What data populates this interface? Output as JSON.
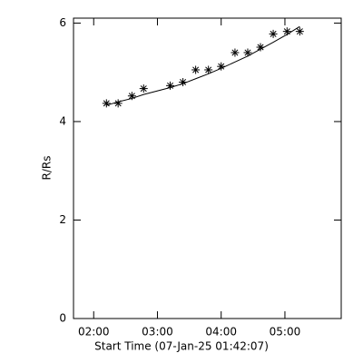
{
  "chart_data": {
    "type": "scatter",
    "xlabel": "Start Time (07-Jan-25 01:42:07)",
    "ylabel": "R/Rs",
    "x": [
      132,
      143,
      156,
      167,
      192,
      204,
      216,
      228,
      240,
      253,
      265,
      277,
      289,
      302,
      314
    ],
    "series": [
      {
        "color": "#000000",
        "marker": "asterisk",
        "values": [
          4.37,
          4.37,
          4.52,
          4.67,
          4.73,
          4.8,
          5.05,
          5.05,
          5.12,
          5.4,
          5.4,
          5.51,
          5.78,
          5.83,
          5.83
        ]
      },
      {
        "color": "#000000",
        "marker": "none",
        "values": [
          4.33,
          4.4,
          4.47,
          4.55,
          4.69,
          4.77,
          4.87,
          4.97,
          5.08,
          5.21,
          5.33,
          5.47,
          5.61,
          5.77,
          5.93
        ]
      }
    ],
    "xlim": [
      101,
      353
    ],
    "xticks": [
      {
        "value": 120,
        "label": "02:00"
      },
      {
        "value": 180,
        "label": "03:00"
      },
      {
        "value": 240,
        "label": "04:00"
      },
      {
        "value": 300,
        "label": "05:00"
      }
    ],
    "ylim": [
      0,
      6.1
    ],
    "yticks": [
      0,
      2,
      4,
      6
    ]
  }
}
